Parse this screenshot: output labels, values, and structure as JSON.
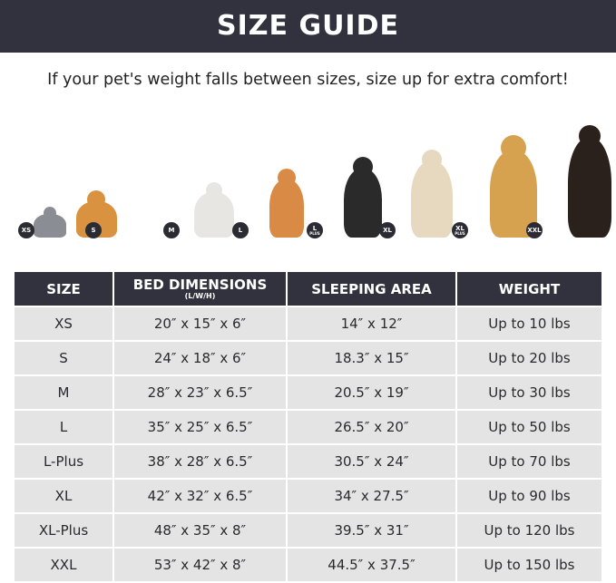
{
  "title": "SIZE GUIDE",
  "subtitle": "If your pet's weight falls between sizes, size up for extra comfort!",
  "pets": [
    {
      "badge": "XS",
      "badge_sub": "",
      "animal": "cat",
      "color": "#8a8d93"
    },
    {
      "badge": "S",
      "badge_sub": "",
      "animal": "pomeranian",
      "color": "#d9923f"
    },
    {
      "badge": "M",
      "badge_sub": "",
      "animal": "french-bulldog",
      "color": "#e8e6e2"
    },
    {
      "badge": "L",
      "badge_sub": "",
      "animal": "shiba-inu",
      "color": "#d98a45"
    },
    {
      "badge": "L",
      "badge_sub": "PLUS",
      "animal": "border-collie",
      "color": "#2a2a2a"
    },
    {
      "badge": "XL",
      "badge_sub": "",
      "animal": "labrador",
      "color": "#e6d9bf"
    },
    {
      "badge": "XL",
      "badge_sub": "PLUS",
      "animal": "golden-retriever",
      "color": "#d7a250"
    },
    {
      "badge": "XXL",
      "badge_sub": "",
      "animal": "doberman",
      "color": "#2a211c"
    }
  ],
  "table": {
    "headers": {
      "size": "SIZE",
      "dims": "BED DIMENSIONS",
      "dims_sub": "(L/W/H)",
      "area": "SLEEPING AREA",
      "weight": "WEIGHT"
    },
    "rows": [
      {
        "size": "XS",
        "dims": "20″ x 15″ x 6″",
        "area": "14″ x 12″",
        "weight": "Up to 10 lbs"
      },
      {
        "size": "S",
        "dims": "24″ x 18″ x 6″",
        "area": "18.3″ x 15″",
        "weight": "Up to 20 lbs"
      },
      {
        "size": "M",
        "dims": "28″ x 23″ x 6.5″",
        "area": "20.5″ x 19″",
        "weight": "Up to 30 lbs"
      },
      {
        "size": "L",
        "dims": "35″ x 25″ x 6.5″",
        "area": "26.5″ x 20″",
        "weight": "Up to 50 lbs"
      },
      {
        "size": "L-Plus",
        "dims": "38″ x 28″ x 6.5″",
        "area": "30.5″ x 24″",
        "weight": "Up to 70 lbs"
      },
      {
        "size": "XL",
        "dims": "42″ x 32″ x 6.5″",
        "area": "34″ x 27.5″",
        "weight": "Up to 90 lbs"
      },
      {
        "size": "XL-Plus",
        "dims": "48″ x 35″ x 8″",
        "area": "39.5″ x 31″",
        "weight": "Up to 120 lbs"
      },
      {
        "size": "XXL",
        "dims": "53″ x 42″ x 8″",
        "area": "44.5″ x 37.5″",
        "weight": "Up to 150 lbs"
      }
    ]
  }
}
